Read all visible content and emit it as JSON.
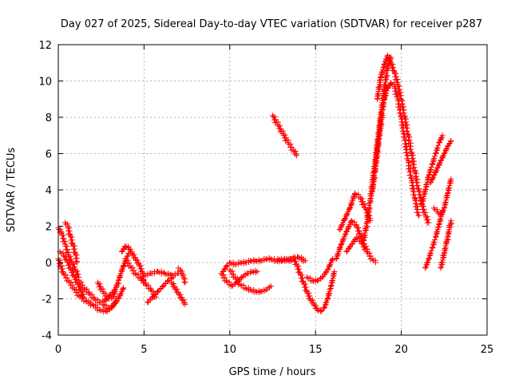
{
  "chart_data": {
    "type": "scatter",
    "title": "Day 027 of 2025, Sidereal Day-to-day VTEC variation (SDTVAR) for receiver p287",
    "xlabel": "GPS time / hours",
    "ylabel": "SDTVAR / TECUs",
    "xlim": [
      0,
      25
    ],
    "ylim": [
      -4,
      12
    ],
    "x_ticks": [
      0,
      5,
      10,
      15,
      20,
      25
    ],
    "y_ticks": [
      -4,
      -2,
      0,
      2,
      4,
      6,
      8,
      10,
      12
    ],
    "grid": true,
    "marker": "+",
    "marker_color": "#ff0000",
    "series": [
      {
        "name": "SDTVAR",
        "segments": [
          {
            "x": [
              0.0,
              0.3,
              0.6,
              0.9,
              1.2,
              1.6,
              2.0,
              2.4,
              2.8,
              3.1,
              3.4
            ],
            "y": [
              0.2,
              -0.6,
              -1.0,
              -1.4,
              -1.8,
              -2.1,
              -2.3,
              -2.6,
              -2.7,
              -2.5,
              -2.0
            ]
          },
          {
            "x": [
              0.0,
              0.2,
              0.4,
              0.6,
              0.8,
              1.0,
              1.2
            ],
            "y": [
              1.9,
              1.6,
              1.0,
              0.4,
              0.0,
              -0.4,
              -0.8
            ]
          },
          {
            "x": [
              0.4,
              0.55,
              0.7,
              0.85,
              1.0,
              1.1
            ],
            "y": [
              2.2,
              2.0,
              1.5,
              1.0,
              0.5,
              0.0
            ]
          },
          {
            "x": [
              0.1,
              0.3,
              0.5,
              0.7,
              0.9,
              1.1,
              1.3,
              1.5
            ],
            "y": [
              0.6,
              0.4,
              0.1,
              -0.3,
              -0.7,
              -1.1,
              -1.5,
              -1.9
            ]
          },
          {
            "x": [
              1.2,
              1.5,
              1.8,
              2.1,
              2.4,
              2.7,
              3.0,
              3.3
            ],
            "y": [
              -1.0,
              -1.4,
              -1.7,
              -2.0,
              -2.2,
              -2.1,
              -1.8,
              -1.5
            ]
          },
          {
            "x": [
              2.3,
              2.6,
              2.9,
              3.2,
              3.5,
              3.8,
              4.1
            ],
            "y": [
              -1.1,
              -1.6,
              -2.0,
              -1.9,
              -1.0,
              -0.2,
              0.5
            ]
          },
          {
            "x": [
              2.6,
              2.9,
              3.2,
              3.5,
              3.8
            ],
            "y": [
              -2.3,
              -2.5,
              -2.4,
              -2.0,
              -1.4
            ]
          },
          {
            "x": [
              3.7,
              3.9,
              4.1,
              4.3,
              4.5,
              4.7,
              4.9,
              5.0
            ],
            "y": [
              0.6,
              0.9,
              0.8,
              0.5,
              0.2,
              -0.1,
              -0.5,
              -1.0
            ]
          },
          {
            "x": [
              3.9,
              4.2,
              4.5,
              4.8,
              5.1,
              5.4,
              5.7
            ],
            "y": [
              0.2,
              -0.2,
              -0.6,
              -0.9,
              -1.2,
              -1.5,
              -1.9
            ]
          },
          {
            "x": [
              5.0,
              5.4,
              5.8,
              6.2,
              6.6,
              7.0
            ],
            "y": [
              -0.7,
              -0.6,
              -0.5,
              -0.6,
              -0.7,
              -0.6
            ]
          },
          {
            "x": [
              5.2,
              5.5,
              5.8,
              6.1,
              6.4,
              6.7
            ],
            "y": [
              -2.2,
              -1.9,
              -1.6,
              -1.3,
              -1.0,
              -0.8
            ]
          },
          {
            "x": [
              6.6,
              6.8,
              7.0,
              7.2,
              7.4
            ],
            "y": [
              -1.1,
              -1.4,
              -1.7,
              -2.0,
              -2.3
            ]
          },
          {
            "x": [
              7.0,
              7.1,
              7.2,
              7.3,
              7.4
            ],
            "y": [
              -0.3,
              -0.4,
              -0.6,
              -0.8,
              -1.1
            ]
          },
          {
            "x": [
              9.6,
              9.8,
              10.0,
              10.3,
              10.6,
              10.9,
              11.2,
              11.5,
              11.8,
              12.1,
              12.4,
              12.7,
              13.0,
              13.3,
              13.6
            ],
            "y": [
              -0.5,
              -0.2,
              0.0,
              -0.1,
              0.0,
              0.0,
              0.1,
              0.1,
              0.1,
              0.2,
              0.2,
              0.1,
              0.1,
              0.2,
              0.1
            ]
          },
          {
            "x": [
              9.5,
              9.8,
              10.1,
              10.4,
              10.7,
              11.0,
              11.3,
              11.6
            ],
            "y": [
              -0.6,
              -1.0,
              -1.3,
              -1.1,
              -0.8,
              -0.6,
              -0.5,
              -0.5
            ]
          },
          {
            "x": [
              10.0,
              10.3,
              10.6,
              10.9,
              11.2,
              11.5,
              11.8,
              12.1,
              12.4
            ],
            "y": [
              -0.4,
              -0.8,
              -1.2,
              -1.4,
              -1.5,
              -1.6,
              -1.6,
              -1.5,
              -1.3
            ]
          },
          {
            "x": [
              12.8,
              13.2,
              13.6,
              14.0,
              14.4
            ],
            "y": [
              0.2,
              0.1,
              0.2,
              0.3,
              0.1
            ]
          },
          {
            "x": [
              12.5,
              12.8,
              13.1,
              13.4,
              13.7,
              13.9
            ],
            "y": [
              8.1,
              7.6,
              7.1,
              6.6,
              6.2,
              5.9
            ]
          },
          {
            "x": [
              13.7,
              13.9,
              14.1,
              14.3,
              14.5,
              14.7,
              14.9,
              15.1,
              15.3,
              15.5,
              15.7,
              15.9,
              16.1
            ],
            "y": [
              0.3,
              -0.1,
              -0.6,
              -1.1,
              -1.6,
              -2.0,
              -2.3,
              -2.6,
              -2.7,
              -2.5,
              -2.0,
              -1.3,
              -0.5
            ]
          },
          {
            "x": [
              14.5,
              14.8,
              15.1,
              15.4,
              15.7,
              16.0
            ],
            "y": [
              -0.8,
              -1.0,
              -1.0,
              -0.8,
              -0.4,
              0.2
            ]
          },
          {
            "x": [
              16.2,
              16.5,
              16.8,
              17.1,
              17.4,
              17.7,
              18.0
            ],
            "y": [
              0.2,
              1.0,
              1.7,
              2.3,
              2.0,
              1.3,
              0.6
            ]
          },
          {
            "x": [
              16.4,
              16.7,
              17.0,
              17.3,
              17.6,
              17.9,
              18.2
            ],
            "y": [
              1.8,
              2.4,
              3.0,
              3.8,
              3.6,
              3.0,
              2.3
            ]
          },
          {
            "x": [
              16.8,
              17.1,
              17.4,
              17.7,
              18.0,
              18.3,
              18.5
            ],
            "y": [
              0.6,
              1.0,
              1.4,
              1.1,
              0.6,
              0.2,
              0.0
            ]
          },
          {
            "x": [
              17.8,
              18.0,
              18.2,
              18.4,
              18.6,
              18.8,
              19.0,
              19.2,
              19.4
            ],
            "y": [
              1.2,
              2.2,
              3.5,
              5.0,
              6.5,
              8.0,
              9.5,
              10.8,
              11.3
            ]
          },
          {
            "x": [
              18.3,
              18.5,
              18.7,
              18.9,
              19.1
            ],
            "y": [
              3.9,
              5.3,
              6.8,
              8.4,
              9.8
            ]
          },
          {
            "x": [
              18.6,
              18.8,
              19.0,
              19.2,
              19.4,
              19.6,
              19.8,
              20.0,
              20.2,
              20.4,
              20.6,
              20.8,
              21.0,
              21.2,
              21.4,
              21.6
            ],
            "y": [
              9.0,
              10.2,
              10.9,
              11.4,
              11.0,
              10.5,
              9.8,
              9.0,
              8.0,
              7.0,
              6.0,
              5.0,
              4.0,
              3.2,
              2.6,
              2.2
            ]
          },
          {
            "x": [
              19.0,
              19.2,
              19.4,
              19.6,
              19.8,
              20.0,
              20.2,
              20.4,
              20.6,
              20.8,
              21.0
            ],
            "y": [
              9.0,
              9.6,
              9.9,
              9.7,
              9.0,
              8.0,
              6.8,
              5.6,
              4.5,
              3.5,
              2.6
            ]
          },
          {
            "x": [
              21.2,
              21.4,
              21.6,
              21.8,
              22.0,
              22.2,
              22.4
            ],
            "y": [
              3.2,
              4.0,
              4.8,
              5.4,
              6.0,
              6.6,
              7.0
            ]
          },
          {
            "x": [
              21.4,
              21.6,
              21.8,
              22.0,
              22.2,
              22.4
            ],
            "y": [
              -0.3,
              0.2,
              0.8,
              1.4,
              2.1,
              2.8
            ]
          },
          {
            "x": [
              21.7,
              21.9,
              22.1,
              22.3,
              22.5,
              22.7,
              22.9
            ],
            "y": [
              4.4,
              4.8,
              5.2,
              5.6,
              6.0,
              6.4,
              6.7
            ]
          },
          {
            "x": [
              21.9,
              22.1,
              22.3,
              22.5,
              22.7,
              22.9
            ],
            "y": [
              3.0,
              2.8,
              2.6,
              3.0,
              3.8,
              4.6
            ]
          },
          {
            "x": [
              22.3,
              22.5,
              22.7,
              22.9
            ],
            "y": [
              -0.3,
              0.5,
              1.4,
              2.3
            ]
          }
        ]
      }
    ]
  }
}
